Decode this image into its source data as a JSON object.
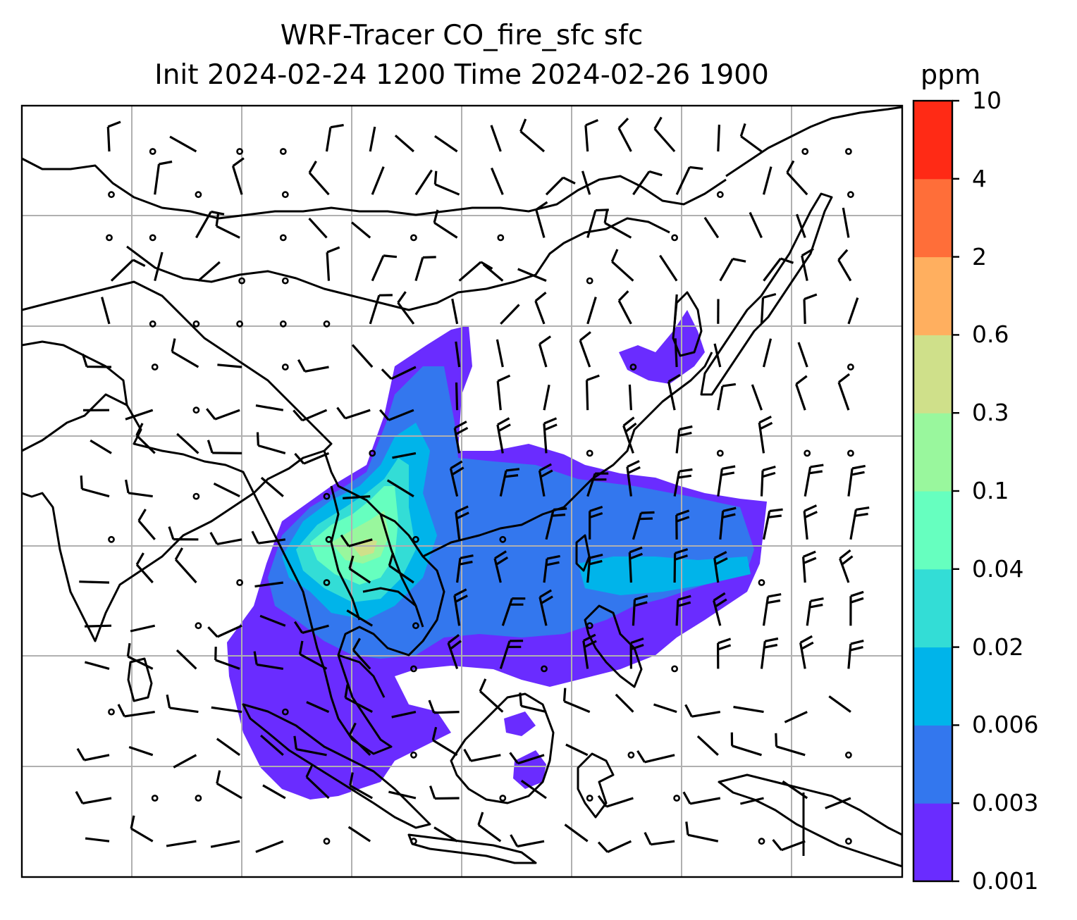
{
  "title": "WRF-Tracer CO_fire_sfc sfc",
  "subtitle": "Init 2024-02-24 1200 Time 2024-02-26 1900",
  "colorbar": {
    "units": "ppm",
    "levels": [
      "0.001",
      "0.003",
      "0.006",
      "0.02",
      "0.04",
      "0.1",
      "0.3",
      "0.6",
      "2",
      "4",
      "10"
    ],
    "colors": [
      "#6a2cff",
      "#3377ee",
      "#00b4ea",
      "#33ddd6",
      "#66ffbf",
      "#99f79d",
      "#cfe08a",
      "#ffaf5f",
      "#ff6e39",
      "#ff2a15"
    ]
  },
  "map": {
    "gridlines": true,
    "wind_barbs": true,
    "coastline_color": "#000000"
  }
}
